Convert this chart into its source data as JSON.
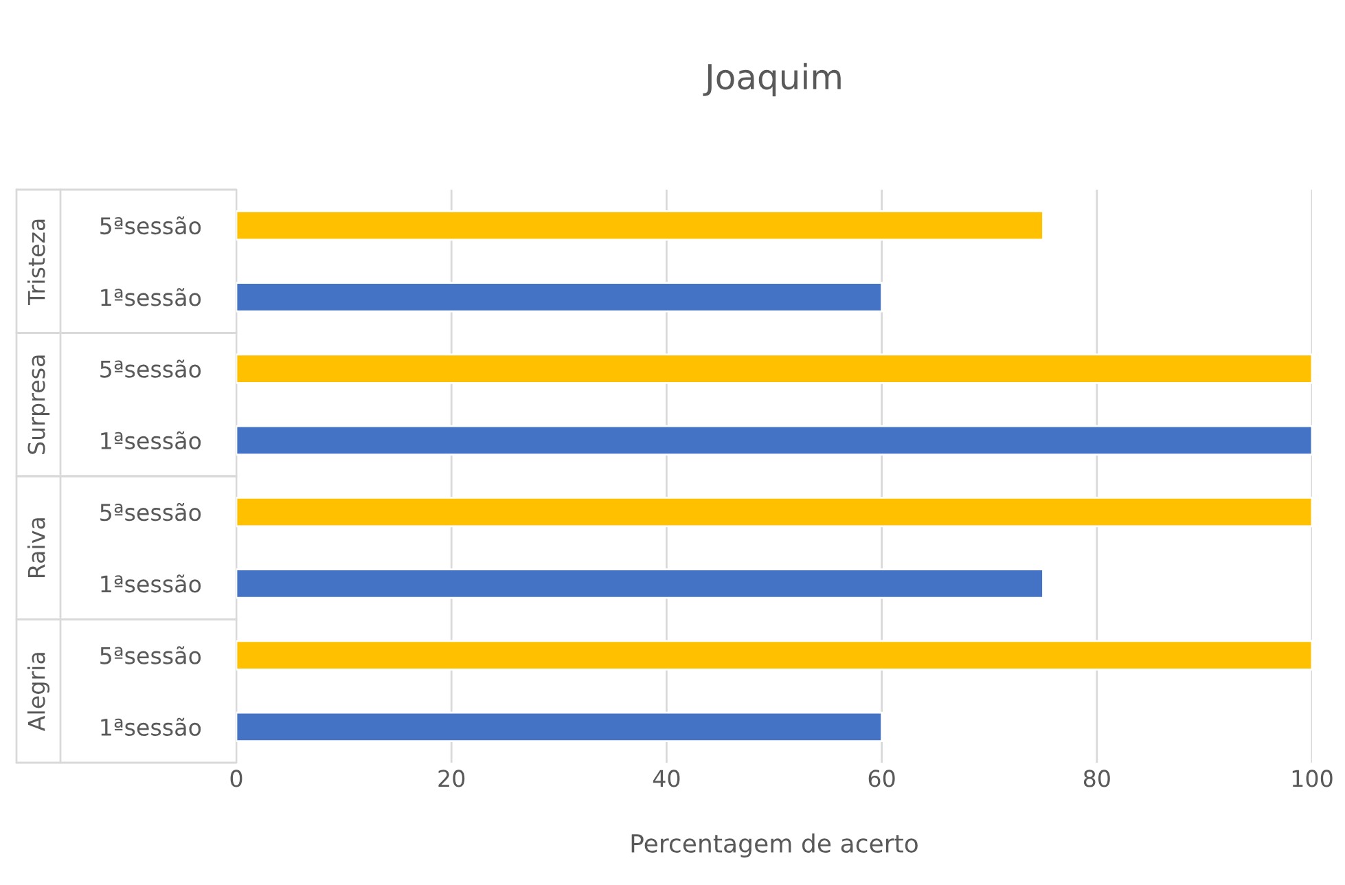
{
  "chart_data": {
    "type": "bar",
    "orientation": "horizontal",
    "title": "Joaquim",
    "xlabel": "Percentagem de acerto",
    "categories": [
      "5ªsessão",
      "1ªsessão",
      "5ªsessão",
      "1ªsessão",
      "5ªsessão",
      "1ªsessão",
      "5ªsessão",
      "1ªsessão"
    ],
    "values": [
      75,
      60,
      100,
      100,
      100,
      75,
      100,
      60
    ],
    "colors": [
      "#ffc000",
      "#4472c4",
      "#ffc000",
      "#4472c4",
      "#ffc000",
      "#4472c4",
      "#ffc000",
      "#4472c4"
    ],
    "annotations": [
      "Tristeza",
      "Surpresa",
      "Raiva",
      "Alegria"
    ],
    "xlim": [
      0,
      100
    ],
    "xticks": [
      0,
      20,
      40,
      60,
      80,
      100
    ],
    "grid": "x",
    "legend": false
  }
}
